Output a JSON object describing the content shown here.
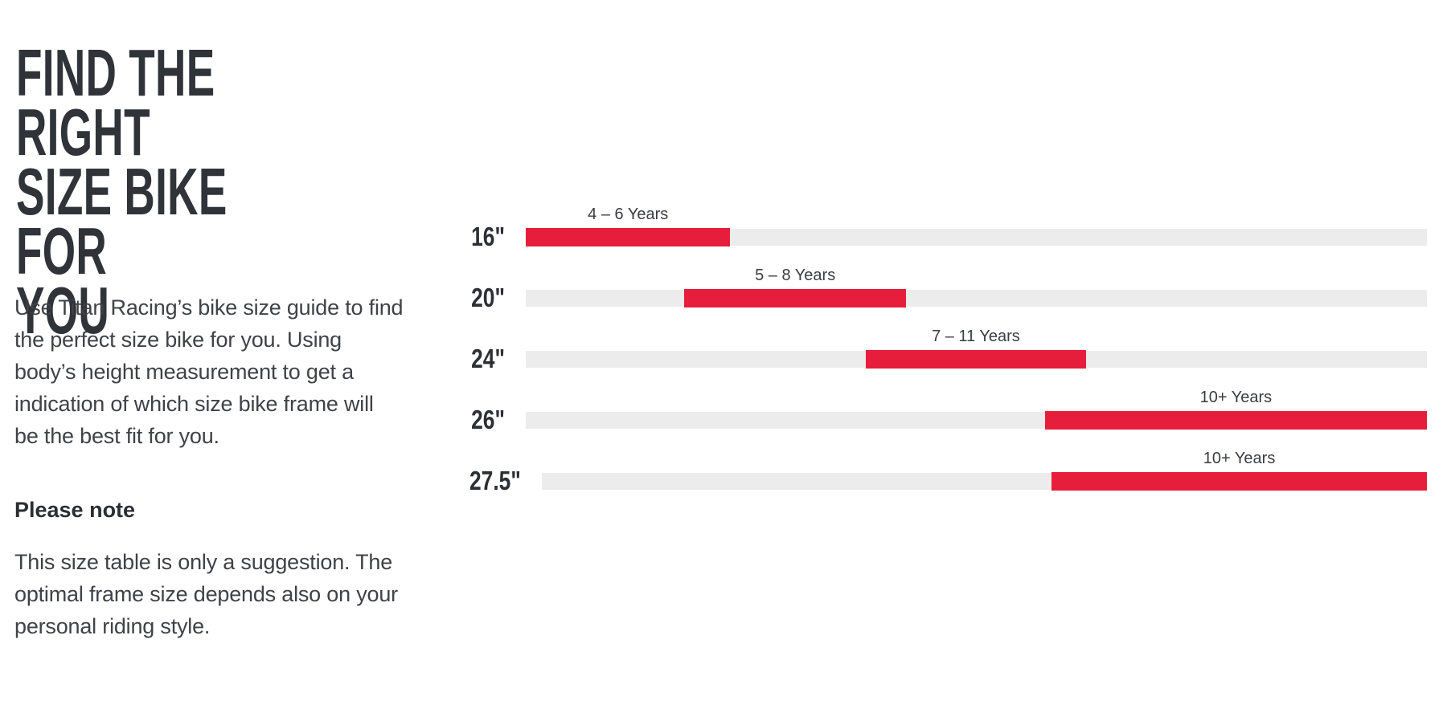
{
  "intro": {
    "title": "FIND THE RIGHT\nSIZE BIKE FOR\nYOU",
    "paragraph": "Use Titan Racing’s bike size guide to find\nthe perfect size bike for you. Using\nbody’s height measurement to get a\nindication of which size bike frame will\nbe the best fit for you.",
    "note_heading": "Please note",
    "note_paragraph": "This size table is only a suggestion. The\noptimal frame size depends also on your\npersonal riding style."
  },
  "chart_data": {
    "type": "bar",
    "orientation": "horizontal",
    "categories": [
      "16\"",
      "20\"",
      "24\"",
      "26\"",
      "27.5\""
    ],
    "rows": [
      {
        "wheel": "16\"",
        "age": "4 – 6 Years",
        "start_pct": 0,
        "end_pct": 22.7
      },
      {
        "wheel": "20\"",
        "age": "5 – 8 Years",
        "start_pct": 17.6,
        "end_pct": 42.2
      },
      {
        "wheel": "24\"",
        "age": "7 – 11 Years",
        "start_pct": 37.7,
        "end_pct": 62.2
      },
      {
        "wheel": "26\"",
        "age": "10+ Years",
        "start_pct": 57.6,
        "end_pct": 100
      },
      {
        "wheel": "27.5\"",
        "age": "10+ Years",
        "start_pct": 57.6,
        "end_pct": 100
      }
    ],
    "colors": {
      "bar": "#e61e3c",
      "track": "#ececec"
    },
    "legend": "none",
    "grid": "off",
    "axis_range_pct": [
      0,
      100
    ]
  }
}
